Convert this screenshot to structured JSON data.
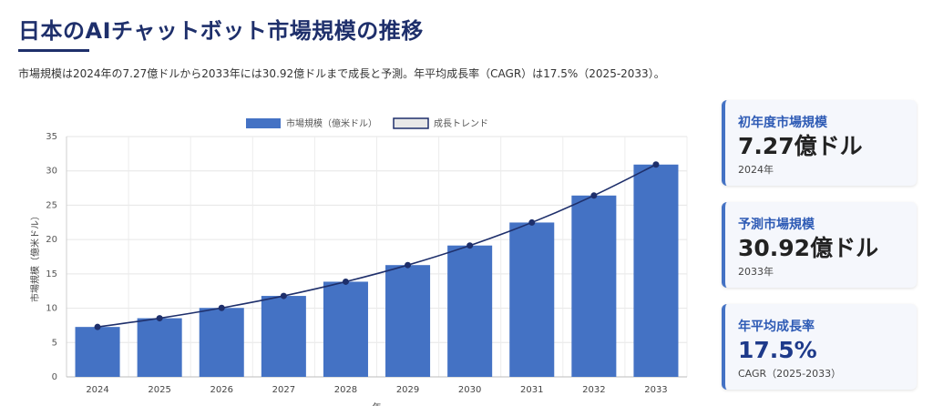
{
  "header": {
    "title": "日本のAIチャットボット市場規模の推移",
    "subtitle": "市場規模は2024年の7.27億ドルから2033年には30.92億ドルまで成長と予測。年平均成長率（CAGR）は17.5%（2025-2033）。"
  },
  "colors": {
    "bar": "#4472c4",
    "trend": "#1e2f6b",
    "title": "#1e2f6b",
    "card_label": "#2e5bb5",
    "card_border": "#4472c4"
  },
  "chart_data": {
    "type": "bar",
    "categories": [
      "2024",
      "2025",
      "2026",
      "2027",
      "2028",
      "2029",
      "2030",
      "2031",
      "2032",
      "2033"
    ],
    "series": [
      {
        "name": "市場規模（億米ドル）",
        "type": "bar",
        "values": [
          7.27,
          8.54,
          10.04,
          11.79,
          13.86,
          16.28,
          19.13,
          22.48,
          26.41,
          30.92
        ]
      },
      {
        "name": "成長トレンド",
        "type": "line",
        "values": [
          7.27,
          8.54,
          10.04,
          11.79,
          13.86,
          16.28,
          19.13,
          22.48,
          26.41,
          30.92
        ]
      }
    ],
    "ylim": [
      0,
      35
    ],
    "yticks": [
      0,
      5,
      10,
      15,
      20,
      25,
      30,
      35
    ],
    "ylabel": "市場規模（億米ドル）",
    "xlabel": "年",
    "grid": true,
    "legend_position": "top"
  },
  "cards": [
    {
      "label": "初年度市場規模",
      "value": "7.27億ドル",
      "sub": "2024年"
    },
    {
      "label": "予測市場規模",
      "value": "30.92億ドル",
      "sub": "2033年"
    },
    {
      "label": "年平均成長率",
      "value": "17.5%",
      "sub": "CAGR（2025-2033）"
    }
  ]
}
